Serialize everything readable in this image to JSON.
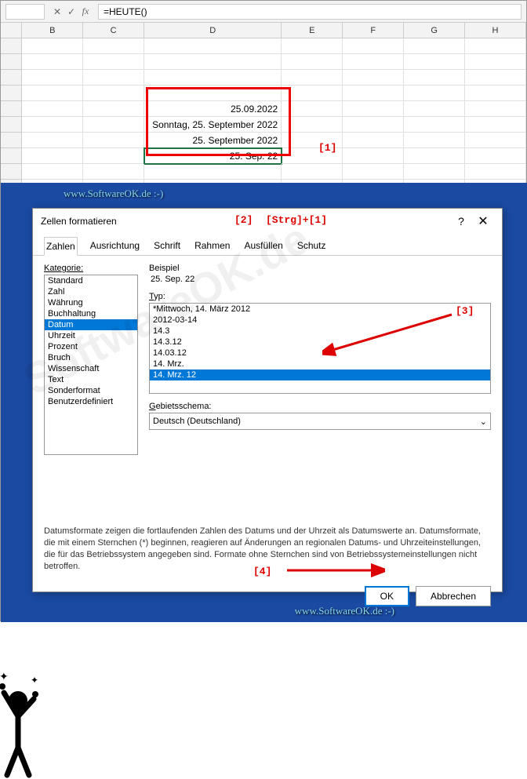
{
  "formula_bar": {
    "formula": "=HEUTE()"
  },
  "columns": [
    "B",
    "C",
    "D",
    "E",
    "F",
    "G",
    "H"
  ],
  "cells": {
    "d5": "25.09.2022",
    "d6": "Sonntag, 25. September 2022",
    "d7": "25. September 2022",
    "d8": "25. Sep. 22"
  },
  "annotations": {
    "a1": "[1]",
    "a2": "[2]",
    "a2b": "[Strg]+[1]",
    "a3": "[3]",
    "a4": "[4]"
  },
  "softwareok": "www.SoftwareOK.de :-)",
  "dialog": {
    "title": "Zellen formatieren",
    "tabs": [
      "Zahlen",
      "Ausrichtung",
      "Schrift",
      "Rahmen",
      "Ausfüllen",
      "Schutz"
    ],
    "category_label": "Kategorie:",
    "categories": [
      "Standard",
      "Zahl",
      "Währung",
      "Buchhaltung",
      "Datum",
      "Uhrzeit",
      "Prozent",
      "Bruch",
      "Wissenschaft",
      "Text",
      "Sonderformat",
      "Benutzerdefiniert"
    ],
    "selected_category": 4,
    "example_label": "Beispiel",
    "example_value": "25. Sep. 22",
    "type_label": "Typ:",
    "types": [
      "*Mittwoch, 14. März 2012",
      "2012-03-14",
      "14.3",
      "14.3.12",
      "14.03.12",
      "14. Mrz.",
      "14. Mrz. 12"
    ],
    "selected_type": 6,
    "locale_label": "Gebietsschema:",
    "locale_value": "Deutsch (Deutschland)",
    "description": "Datumsformate zeigen die fortlaufenden Zahlen des Datums und der Uhrzeit als Datumswerte an. Datumsformate, die mit einem Sternchen (*) beginnen, reagieren auf Änderungen an regionalen Datums- und Uhrzeiteinstellungen, die für das Betriebssystem angegeben sind. Formate ohne Sternchen sind von Betriebssystemeinstellungen nicht betroffen.",
    "ok": "OK",
    "cancel": "Abbrechen"
  },
  "watermark": "SoftwareOK.de"
}
